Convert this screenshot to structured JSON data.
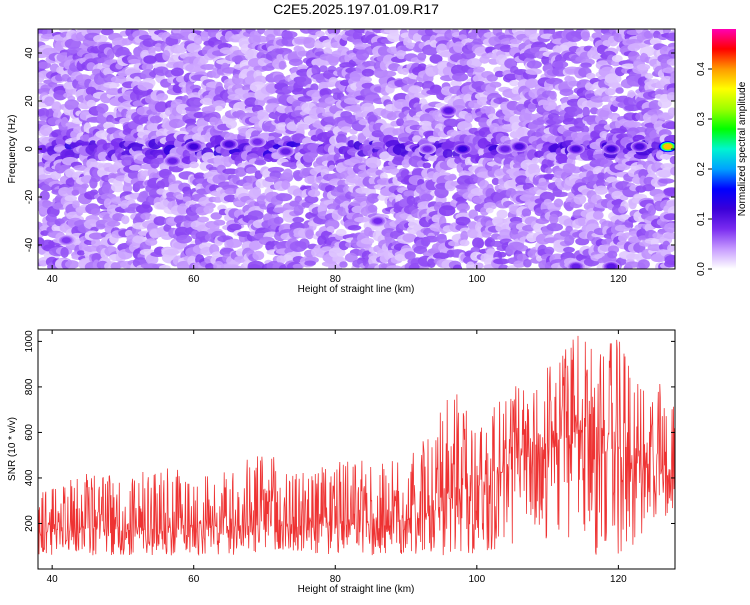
{
  "title": "C2E5.2025.197.01.09.R17",
  "colors": {
    "snr_line": "#ee3333",
    "colormap": [
      "#ffffff",
      "#c79bff",
      "#7a2cf0",
      "#3a00d8",
      "#0000ff",
      "#00a2ff",
      "#00f5d0",
      "#00ff00",
      "#9dff00",
      "#ffff00",
      "#ff9a00",
      "#ff0000",
      "#ff00b4"
    ]
  },
  "chart_data": [
    {
      "type": "heatmap",
      "title": "C2E5.2025.197.01.09.R17",
      "xlabel": "Height of straight line (km)",
      "ylabel": "Frequency (Hz)",
      "xlim": [
        38,
        128
      ],
      "ylim": [
        -50,
        50
      ],
      "xticks": [
        40,
        60,
        80,
        100,
        120
      ],
      "yticks": [
        -40,
        -20,
        0,
        20,
        40
      ],
      "description_of_values": "Broadband speckle of low normalized amplitude with a stronger narrow band near 0 Hz across all heights, peaking around 127 km",
      "band_center_hz": 0,
      "hotspots": [
        {
          "x": 57,
          "y": -5,
          "value": 0.11
        },
        {
          "x": 60,
          "y": 1,
          "value": 0.14
        },
        {
          "x": 65,
          "y": 2,
          "value": 0.13
        },
        {
          "x": 69,
          "y": 3,
          "value": 0.1
        },
        {
          "x": 73,
          "y": -1,
          "value": 0.11
        },
        {
          "x": 93,
          "y": 0,
          "value": 0.1
        },
        {
          "x": 96,
          "y": 16,
          "value": 0.12
        },
        {
          "x": 98,
          "y": 0,
          "value": 0.15
        },
        {
          "x": 104,
          "y": 0,
          "value": 0.11
        },
        {
          "x": 106,
          "y": 1,
          "value": 0.13
        },
        {
          "x": 114,
          "y": 0,
          "value": 0.13
        },
        {
          "x": 119,
          "y": 0,
          "value": 0.14
        },
        {
          "x": 123,
          "y": 1,
          "value": 0.13
        },
        {
          "x": 127,
          "y": 1,
          "value": 0.46
        },
        {
          "x": 119,
          "y": -49,
          "value": 0.12
        },
        {
          "x": 114,
          "y": -49,
          "value": 0.11
        },
        {
          "x": 42,
          "y": -38,
          "value": 0.09
        },
        {
          "x": 86,
          "y": -30,
          "value": 0.1
        }
      ]
    },
    {
      "type": "colorbar",
      "label": "Normalized spectral amplitude",
      "range": [
        0,
        0.48
      ],
      "ticks": [
        "0.0",
        "0.1",
        "0.2",
        "0.3",
        "0.4"
      ],
      "tick_values": [
        0,
        0.1,
        0.2,
        0.3,
        0.4
      ]
    },
    {
      "type": "line",
      "xlabel": "Height of straight line (km)",
      "ylabel": "SNR (10 * v/v)",
      "xlim": [
        38,
        128
      ],
      "ylim": [
        0,
        1050
      ],
      "xticks": [
        40,
        60,
        80,
        100,
        120
      ],
      "yticks": [
        200,
        400,
        600,
        800,
        1000
      ],
      "series": [
        {
          "x": [
            38,
            42,
            46,
            50,
            54,
            58,
            62,
            66,
            70,
            74,
            78,
            82,
            86,
            90,
            94,
            96,
            98,
            100,
            102,
            104,
            106,
            108,
            110,
            112,
            114,
            116,
            118,
            120,
            122,
            124,
            126,
            128
          ],
          "y_low": [
            60,
            60,
            60,
            60,
            60,
            60,
            60,
            60,
            60,
            60,
            60,
            60,
            60,
            60,
            60,
            40,
            40,
            30,
            60,
            80,
            120,
            150,
            130,
            110,
            90,
            70,
            50,
            40,
            80,
            150,
            200,
            220
          ],
          "y_mean": [
            160,
            165,
            170,
            170,
            175,
            180,
            180,
            180,
            185,
            180,
            185,
            190,
            195,
            210,
            240,
            300,
            350,
            350,
            400,
            420,
            480,
            520,
            520,
            550,
            580,
            560,
            520,
            480,
            440,
            420,
            400,
            420
          ],
          "y_high": [
            380,
            400,
            430,
            410,
            440,
            470,
            420,
            460,
            520,
            450,
            470,
            480,
            470,
            520,
            600,
            840,
            720,
            700,
            750,
            770,
            840,
            820,
            900,
            960,
            1040,
            980,
            1010,
            1030,
            880,
            760,
            840,
            780
          ]
        }
      ]
    }
  ]
}
